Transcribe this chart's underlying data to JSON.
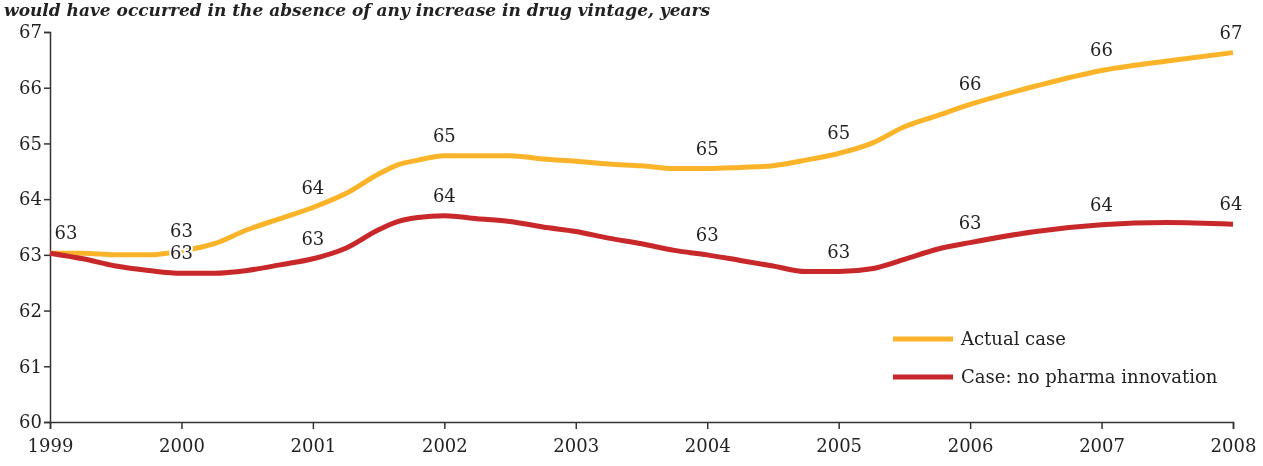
{
  "chart_data": {
    "type": "line",
    "title": "would have occurred in the absence of any increase in drug vintage, years",
    "x": [
      1999,
      1999.25,
      1999.5,
      1999.75,
      2000,
      2000.25,
      2000.5,
      2000.75,
      2001,
      2001.25,
      2001.5,
      2001.65,
      2001.8,
      2002,
      2002.25,
      2002.5,
      2002.75,
      2003,
      2003.25,
      2003.5,
      2003.75,
      2004,
      2004.25,
      2004.5,
      2004.75,
      2005,
      2005.25,
      2005.5,
      2005.75,
      2006,
      2006.5,
      2007,
      2007.5,
      2008
    ],
    "series": [
      {
        "name": "Actual case",
        "color": "#fbb429",
        "values": [
          63.03,
          63.03,
          63.0,
          63.0,
          63.07,
          63.2,
          63.45,
          63.65,
          63.85,
          64.1,
          64.45,
          64.62,
          64.7,
          64.78,
          64.78,
          64.78,
          64.72,
          64.68,
          64.63,
          64.6,
          64.55,
          64.55,
          64.57,
          64.6,
          64.7,
          64.82,
          65.0,
          65.3,
          65.5,
          65.7,
          66.03,
          66.31,
          66.48,
          66.63
        ],
        "value_labels": [
          "63",
          null,
          null,
          null,
          "63",
          null,
          null,
          null,
          "64",
          null,
          null,
          null,
          null,
          "65",
          null,
          null,
          null,
          null,
          null,
          null,
          null,
          "65",
          null,
          null,
          null,
          "65",
          null,
          null,
          null,
          "66",
          null,
          "66",
          null,
          "67"
        ]
      },
      {
        "name": "Case: no pharma innovation",
        "color": "#c8282a",
        "values": [
          63.03,
          62.93,
          62.8,
          62.72,
          62.67,
          62.67,
          62.72,
          62.82,
          62.93,
          63.12,
          63.45,
          63.6,
          63.67,
          63.7,
          63.65,
          63.6,
          63.5,
          63.42,
          63.3,
          63.2,
          63.08,
          63.0,
          62.9,
          62.8,
          62.7,
          62.7,
          62.75,
          62.92,
          63.1,
          63.22,
          63.42,
          63.54,
          63.58,
          63.55
        ],
        "value_labels": [
          null,
          null,
          null,
          null,
          "63",
          null,
          null,
          null,
          "63",
          null,
          null,
          null,
          null,
          "64",
          null,
          null,
          null,
          null,
          null,
          null,
          null,
          "63",
          null,
          null,
          null,
          "63",
          null,
          null,
          null,
          "63",
          null,
          "64",
          null,
          "64"
        ]
      }
    ],
    "xlim": [
      1999,
      2008
    ],
    "xticks": [
      1999,
      2000,
      2001,
      2002,
      2003,
      2004,
      2005,
      2006,
      2007,
      2008
    ],
    "ylim": [
      60,
      67
    ],
    "yticks": [
      60,
      61,
      62,
      63,
      64,
      65,
      66,
      67
    ],
    "grid": false,
    "legend": "bottom right",
    "marker": "none",
    "line_style": "solid"
  }
}
